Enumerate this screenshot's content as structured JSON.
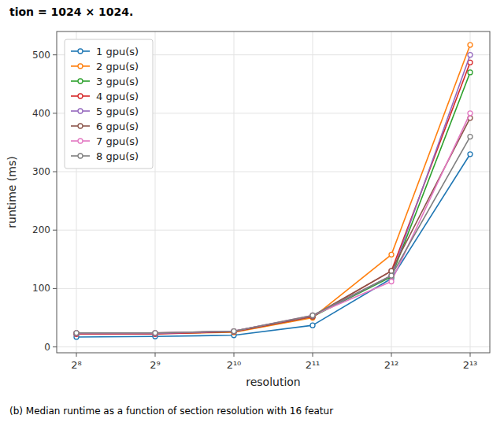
{
  "chart_data": {
    "type": "line",
    "xlabel": "resolution",
    "ylabel": "runtime (ms)",
    "annotations": [
      "tion = 1024 × 1024.",
      "(b) Median runtime as a function of section resolution with 16 featur"
    ],
    "categories": [
      "2⁸",
      "2⁹",
      "2¹⁰",
      "2¹¹",
      "2¹²",
      "2¹³"
    ],
    "series": [
      {
        "name": "1 gpu(s)",
        "color": "#1f77b4",
        "values": [
          17,
          18,
          20,
          37,
          117,
          330
        ]
      },
      {
        "name": "2 gpu(s)",
        "color": "#ff7f0e",
        "values": [
          23,
          23,
          25,
          50,
          158,
          517
        ]
      },
      {
        "name": "3 gpu(s)",
        "color": "#2ca02c",
        "values": [
          23,
          23,
          26,
          52,
          120,
          470
        ]
      },
      {
        "name": "4 gpu(s)",
        "color": "#d62728",
        "values": [
          22,
          22,
          26,
          52,
          130,
          487
        ]
      },
      {
        "name": "5 gpu(s)",
        "color": "#9467bd",
        "values": [
          23,
          23,
          27,
          53,
          122,
          500
        ]
      },
      {
        "name": "6 gpu(s)",
        "color": "#8c564b",
        "values": [
          24,
          24,
          27,
          53,
          130,
          392
        ]
      },
      {
        "name": "7 gpu(s)",
        "color": "#e377c2",
        "values": [
          24,
          24,
          27,
          54,
          112,
          400
        ]
      },
      {
        "name": "8 gpu(s)",
        "color": "#7f7f7f",
        "values": [
          24,
          24,
          27,
          54,
          122,
          360
        ]
      }
    ],
    "ylim": [
      -10,
      540
    ],
    "yticks": [
      0,
      100,
      200,
      300,
      400,
      500
    ],
    "grid": true,
    "legend": "upper left",
    "marker": "circle"
  }
}
